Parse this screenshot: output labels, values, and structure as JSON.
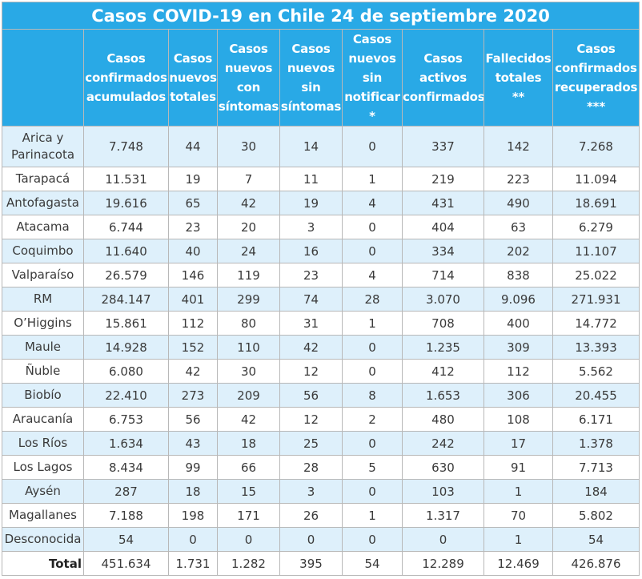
{
  "title": "Casos COVID-19 en Chile 24 de septiembre 2020",
  "columns": [
    "",
    "Casos\nconfirmados\nacumulados",
    "Casos\nnuevos\ntotales",
    "Casos\nnuevos\ncon\nsíntomas",
    "Casos\nnuevos\nsin\nsíntomas",
    "Casos\nnuevos\nsin\nnotificar\n*",
    "Casos\nactivos\nconfirmados",
    "Fallecidos\ntotales\n**",
    "Casos\nconfirmados\nrecuperados\n***"
  ],
  "rows": [
    [
      "Arica y\nParinacota",
      "7.748",
      "44",
      "30",
      "14",
      "0",
      "337",
      "142",
      "7.268"
    ],
    [
      "Tarapacá",
      "11.531",
      "19",
      "7",
      "11",
      "1",
      "219",
      "223",
      "11.094"
    ],
    [
      "Antofagasta",
      "19.616",
      "65",
      "42",
      "19",
      "4",
      "431",
      "490",
      "18.691"
    ],
    [
      "Atacama",
      "6.744",
      "23",
      "20",
      "3",
      "0",
      "404",
      "63",
      "6.279"
    ],
    [
      "Coquimbo",
      "11.640",
      "40",
      "24",
      "16",
      "0",
      "334",
      "202",
      "11.107"
    ],
    [
      "Valparaíso",
      "26.579",
      "146",
      "119",
      "23",
      "4",
      "714",
      "838",
      "25.022"
    ],
    [
      "RM",
      "284.147",
      "401",
      "299",
      "74",
      "28",
      "3.070",
      "9.096",
      "271.931"
    ],
    [
      "O’Higgins",
      "15.861",
      "112",
      "80",
      "31",
      "1",
      "708",
      "400",
      "14.772"
    ],
    [
      "Maule",
      "14.928",
      "152",
      "110",
      "42",
      "0",
      "1.235",
      "309",
      "13.393"
    ],
    [
      "Ñuble",
      "6.080",
      "42",
      "30",
      "12",
      "0",
      "412",
      "112",
      "5.562"
    ],
    [
      "Biobío",
      "22.410",
      "273",
      "209",
      "56",
      "8",
      "1.653",
      "306",
      "20.455"
    ],
    [
      "Araucanía",
      "6.753",
      "56",
      "42",
      "12",
      "2",
      "480",
      "108",
      "6.171"
    ],
    [
      "Los Ríos",
      "1.634",
      "43",
      "18",
      "25",
      "0",
      "242",
      "17",
      "1.378"
    ],
    [
      "Los Lagos",
      "8.434",
      "99",
      "66",
      "28",
      "5",
      "630",
      "91",
      "7.713"
    ],
    [
      "Aysén",
      "287",
      "18",
      "15",
      "3",
      "0",
      "103",
      "1",
      "184"
    ],
    [
      "Magallanes",
      "7.188",
      "198",
      "171",
      "26",
      "1",
      "1.317",
      "70",
      "5.802"
    ],
    [
      "Desconocida",
      "54",
      "0",
      "0",
      "0",
      "0",
      "0",
      "1",
      "54"
    ]
  ],
  "total": [
    "Total",
    "451.634",
    "1.731",
    "1.282",
    "395",
    "54",
    "12.289",
    "12.469",
    "426.876"
  ],
  "colors": {
    "header": "#29a9e6",
    "stripe": "#def0fb",
    "border": "#b8b8b8"
  }
}
